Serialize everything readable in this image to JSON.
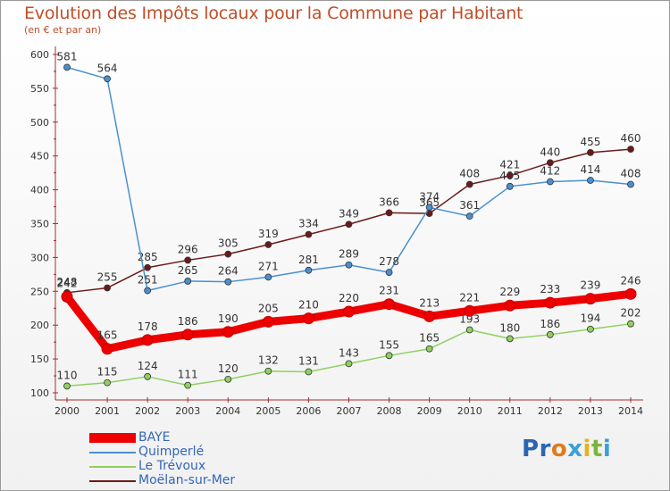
{
  "title": "Evolution des Impôts locaux pour la Commune par Habitant",
  "subtitle": "(en € et par an)",
  "logo": {
    "letters": [
      "P",
      "r",
      "o",
      "x",
      "i",
      "t",
      "i"
    ],
    "colors": [
      "#2a64b4",
      "#2a64b4",
      "#e07a1c",
      "#3aa0d8",
      "#e7b21a",
      "#7cb53c",
      "#3aa0d8"
    ]
  },
  "chart_data": {
    "type": "line",
    "x": [
      "2000",
      "2001",
      "2002",
      "2003",
      "2004",
      "2005",
      "2006",
      "2007",
      "2008",
      "2009",
      "2010",
      "2011",
      "2012",
      "2013",
      "2014"
    ],
    "ylim": [
      100,
      600
    ],
    "yticks": [
      "100",
      "150",
      "200",
      "250",
      "300",
      "350",
      "400",
      "450",
      "500",
      "550",
      "600"
    ],
    "grid": false,
    "legend_position": "bottom-left",
    "series": [
      {
        "name": "Moëlan-sur-Mer",
        "color": "#6b1a1a",
        "values": [
          248,
          255,
          285,
          296,
          305,
          319,
          334,
          349,
          366,
          365,
          408,
          421,
          440,
          455,
          460
        ],
        "labels": [
          "248",
          "255",
          "285",
          "296",
          "305",
          "319",
          "334",
          "349",
          "366",
          "365",
          "408",
          "421",
          "440",
          "455",
          "460"
        ]
      },
      {
        "name": "Quimperlé",
        "color": "#4a90d0",
        "values": [
          581,
          564,
          251,
          265,
          264,
          271,
          281,
          289,
          278,
          374,
          361,
          405,
          412,
          414,
          408
        ],
        "labels": [
          "581",
          "564",
          "251",
          "265",
          "264",
          "271",
          "281",
          "289",
          "278",
          "374",
          "361",
          "405",
          "412",
          "414",
          "408"
        ]
      },
      {
        "name": "Le Trévoux",
        "color": "#8fd060",
        "values": [
          110,
          115,
          124,
          111,
          120,
          132,
          131,
          143,
          155,
          165,
          193,
          180,
          186,
          194,
          202
        ],
        "labels": [
          "110",
          "115",
          "124",
          "111",
          "120",
          "132",
          "131",
          "143",
          "155",
          "165",
          "193",
          "180",
          "186",
          "194",
          "202"
        ]
      },
      {
        "name": "BAYE",
        "color": "#ee0000",
        "values": [
          242,
          165,
          178,
          186,
          190,
          205,
          210,
          220,
          231,
          213,
          221,
          229,
          233,
          239,
          246
        ],
        "labels": [
          "242",
          "165",
          "178",
          "186",
          "190",
          "205",
          "210",
          "220",
          "231",
          "213",
          "221",
          "229",
          "233",
          "239",
          "246"
        ]
      }
    ]
  }
}
